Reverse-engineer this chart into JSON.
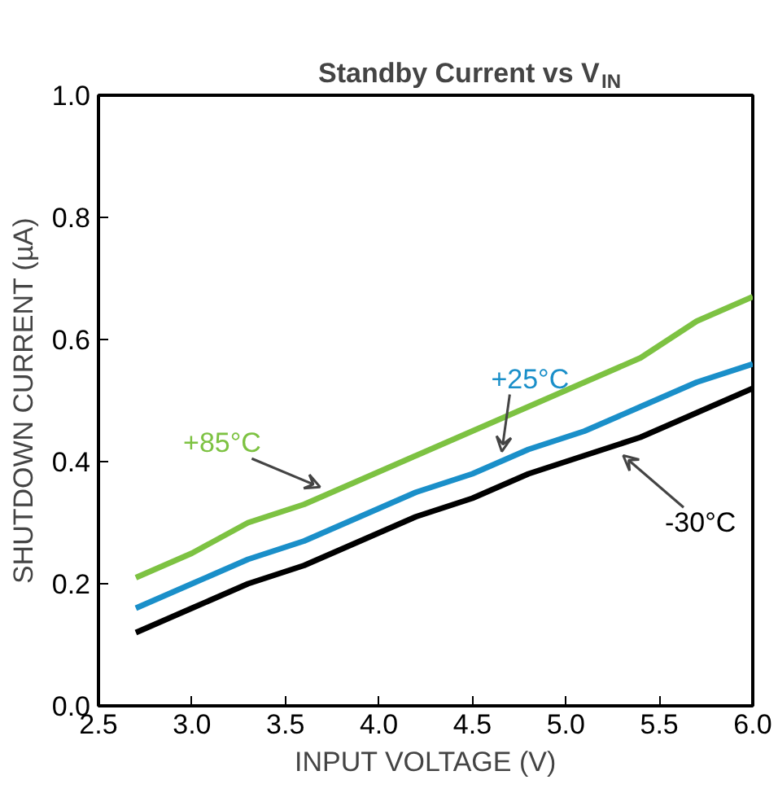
{
  "chart_data": {
    "type": "line",
    "title": "Standby Current vs V$_{IN}$",
    "xlabel": "INPUT VOLTAGE (V)",
    "ylabel": "SHUTDOWN CURRENT (µA)",
    "xlim": [
      2.5,
      6.0
    ],
    "ylim": [
      0.0,
      1.0
    ],
    "xticks": [
      {
        "value": 2.5,
        "label": "2.5"
      },
      {
        "value": 3.0,
        "label": "3.0"
      },
      {
        "value": 3.5,
        "label": "3.5"
      },
      {
        "value": 4.0,
        "label": "4.0"
      },
      {
        "value": 4.5,
        "label": "4.5"
      },
      {
        "value": 5.0,
        "label": "5.0"
      },
      {
        "value": 5.5,
        "label": "5.5"
      },
      {
        "value": 6.0,
        "label": "6.0"
      }
    ],
    "yticks": [
      {
        "value": 0.0,
        "label": "0.0"
      },
      {
        "value": 0.2,
        "label": "0.2"
      },
      {
        "value": 0.4,
        "label": "0.4"
      },
      {
        "value": 0.6,
        "label": "0.6"
      },
      {
        "value": 0.8,
        "label": "0.8"
      },
      {
        "value": 1.0,
        "label": "1.0"
      }
    ],
    "grid": false,
    "x": [
      2.7,
      3.0,
      3.3,
      3.6,
      3.9,
      4.2,
      4.5,
      4.8,
      5.1,
      5.4,
      5.7,
      6.0
    ],
    "series": [
      {
        "name": "+85°C",
        "color": "#7dc242",
        "values": [
          0.21,
          0.25,
          0.3,
          0.33,
          0.37,
          0.41,
          0.45,
          0.49,
          0.53,
          0.57,
          0.63,
          0.67
        ]
      },
      {
        "name": "+25°C",
        "color": "#1a8fc9",
        "values": [
          0.16,
          0.2,
          0.24,
          0.27,
          0.31,
          0.35,
          0.38,
          0.42,
          0.45,
          0.49,
          0.53,
          0.56
        ]
      },
      {
        "name": "-30°C",
        "color": "#000000",
        "values": [
          0.12,
          0.16,
          0.2,
          0.23,
          0.27,
          0.31,
          0.34,
          0.38,
          0.41,
          0.44,
          0.48,
          0.52
        ]
      }
    ]
  }
}
